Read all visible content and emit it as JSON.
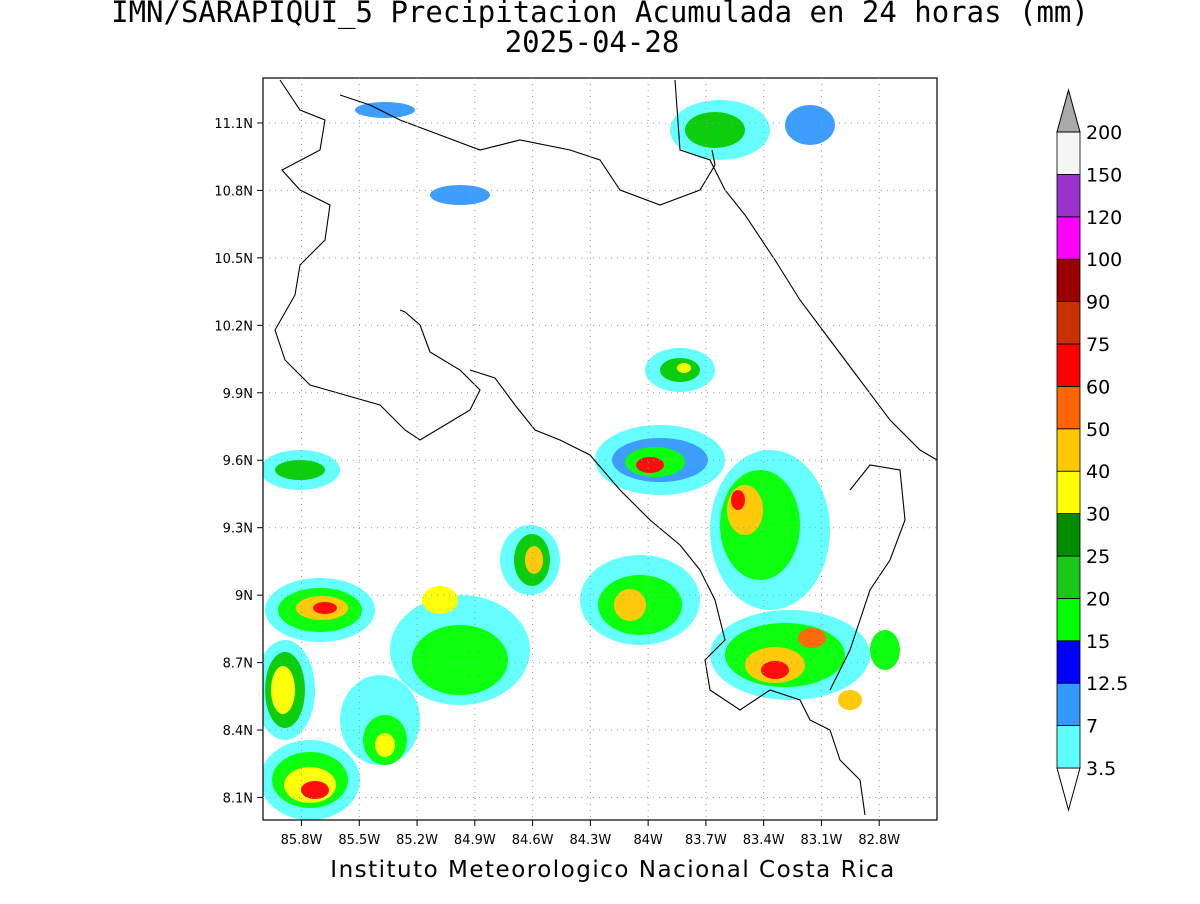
{
  "chart_data": {
    "type": "map",
    "title": "IMN/SARAPIQUI_5 Precipitacion Acumulada en 24 horas (mm)",
    "subtitle": "2025-04-28",
    "footer": "Instituto Meteorologico Nacional Costa Rica",
    "xlim": [
      -86.0,
      -82.5
    ],
    "ylim": [
      8.0,
      11.3
    ],
    "xticks": [
      {
        "value": -85.8,
        "label": "85.8W"
      },
      {
        "value": -85.5,
        "label": "85.5W"
      },
      {
        "value": -85.2,
        "label": "85.2W"
      },
      {
        "value": -84.9,
        "label": "84.9W"
      },
      {
        "value": -84.6,
        "label": "84.6W"
      },
      {
        "value": -84.3,
        "label": "84.3W"
      },
      {
        "value": -84.0,
        "label": "84W"
      },
      {
        "value": -83.7,
        "label": "83.7W"
      },
      {
        "value": -83.4,
        "label": "83.4W"
      },
      {
        "value": -83.1,
        "label": "83.1W"
      },
      {
        "value": -82.8,
        "label": "82.8W"
      }
    ],
    "yticks": [
      {
        "value": 8.1,
        "label": "8.1N"
      },
      {
        "value": 8.4,
        "label": "8.4N"
      },
      {
        "value": 8.7,
        "label": "8.7N"
      },
      {
        "value": 9.0,
        "label": "9N"
      },
      {
        "value": 9.3,
        "label": "9.3N"
      },
      {
        "value": 9.6,
        "label": "9.6N"
      },
      {
        "value": 9.9,
        "label": "9.9N"
      },
      {
        "value": 10.2,
        "label": "10.2N"
      },
      {
        "value": 10.5,
        "label": "10.5N"
      },
      {
        "value": 10.8,
        "label": "10.8N"
      },
      {
        "value": 11.1,
        "label": "11.1N"
      }
    ],
    "grid": true,
    "colorbar": {
      "levels": [
        3.5,
        7,
        12.5,
        15,
        20,
        25,
        30,
        40,
        50,
        60,
        75,
        90,
        100,
        120,
        150,
        200
      ],
      "colors": [
        "#ffffff",
        "#5effff",
        "#3399ff",
        "#0000ff",
        "#00ff00",
        "#19c819",
        "#008c00",
        "#ffff00",
        "#ffc800",
        "#ff6400",
        "#ff0000",
        "#c83200",
        "#9b0000",
        "#ff00ff",
        "#9933cc",
        "#f5f5f5",
        "#aaaaaa"
      ]
    }
  }
}
